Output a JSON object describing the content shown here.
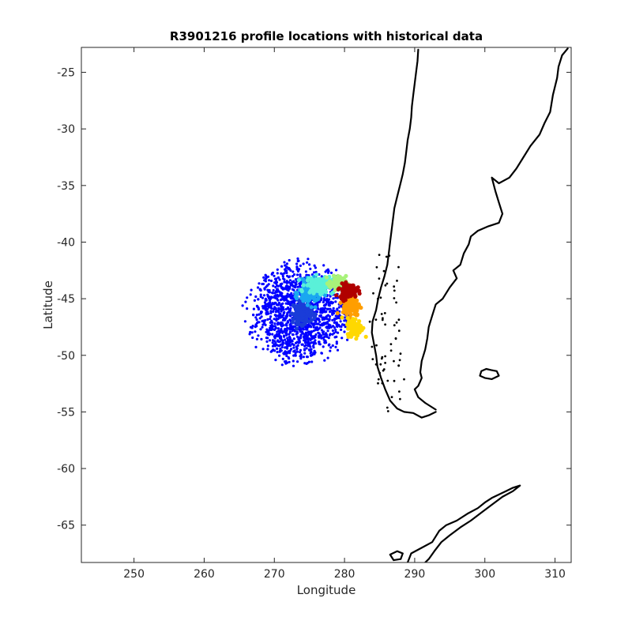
{
  "chart_data": {
    "type": "scatter",
    "title": "R3901216 profile locations with historical data",
    "xlabel": "Longitude",
    "ylabel": "Latitude",
    "xlim": [
      242.5,
      312.3
    ],
    "ylim": [
      -68.3,
      -22.8
    ],
    "xticks": [
      250,
      260,
      270,
      280,
      290,
      300,
      310
    ],
    "yticks": [
      -25,
      -30,
      -35,
      -40,
      -45,
      -50,
      -55,
      -60,
      -65
    ],
    "grid": false,
    "legend": "none",
    "series": [
      {
        "marker_color": "#0000ff",
        "cloud": {
          "center": [
            273.5,
            -46.2
          ],
          "radius_lon": 7.5,
          "radius_lat": 4.6,
          "count": 1400
        },
        "points": []
      },
      {
        "colormap": "jet",
        "clusters": [
          {
            "lon": 274.0,
            "lat": -46.2,
            "count": 160,
            "spread": [
              1.3,
              1.0
            ],
            "color": "#1a3cd8"
          },
          {
            "lon": 275.0,
            "lat": -44.5,
            "count": 140,
            "spread": [
              1.5,
              1.0
            ],
            "color": "#1aa8f0"
          },
          {
            "lon": 276.5,
            "lat": -43.8,
            "count": 150,
            "spread": [
              2.0,
              0.7
            ],
            "color": "#5af0d8"
          },
          {
            "lon": 279.0,
            "lat": -43.6,
            "count": 90,
            "spread": [
              1.2,
              0.6
            ],
            "color": "#a8f27a"
          },
          {
            "lon": 281.0,
            "lat": -45.6,
            "count": 120,
            "spread": [
              1.2,
              0.9
            ],
            "color": "#ff9e00"
          },
          {
            "lon": 281.5,
            "lat": -47.5,
            "count": 110,
            "spread": [
              1.1,
              0.8
            ],
            "color": "#ffd800"
          },
          {
            "lon": 280.5,
            "lat": -44.3,
            "count": 130,
            "spread": [
              1.2,
              0.6
            ],
            "color": "#b00000"
          }
        ]
      }
    ],
    "coastlines": [
      {
        "name": "south-america-west",
        "points": [
          [
            290.5,
            -23
          ],
          [
            290.4,
            -24
          ],
          [
            290.2,
            -25
          ],
          [
            290.0,
            -26
          ],
          [
            289.8,
            -27
          ],
          [
            289.6,
            -28
          ],
          [
            289.5,
            -29
          ],
          [
            289.3,
            -30
          ],
          [
            289.0,
            -31
          ],
          [
            288.8,
            -32
          ],
          [
            288.6,
            -33
          ],
          [
            288.3,
            -34
          ],
          [
            287.9,
            -35
          ],
          [
            287.5,
            -36
          ],
          [
            287.1,
            -37
          ],
          [
            286.9,
            -38
          ],
          [
            286.7,
            -39
          ],
          [
            286.5,
            -40
          ],
          [
            286.3,
            -41
          ],
          [
            286.1,
            -42
          ],
          [
            285.7,
            -43
          ],
          [
            285.2,
            -44
          ],
          [
            284.8,
            -45
          ],
          [
            284.5,
            -46
          ],
          [
            284.0,
            -47
          ],
          [
            283.9,
            -48
          ],
          [
            284.2,
            -49
          ],
          [
            284.5,
            -50
          ],
          [
            284.7,
            -51
          ],
          [
            285.2,
            -52
          ],
          [
            285.8,
            -53
          ],
          [
            286.5,
            -54
          ],
          [
            287.5,
            -54.7
          ],
          [
            288.5,
            -55.0
          ],
          [
            289.8,
            -55.1
          ],
          [
            291.0,
            -55.5
          ],
          [
            292.0,
            -55.3
          ],
          [
            293.0,
            -55.0
          ]
        ]
      },
      {
        "name": "south-america-east",
        "points": [
          [
            311.8,
            -22.9
          ],
          [
            311.0,
            -23.5
          ],
          [
            310.5,
            -24.5
          ],
          [
            310.3,
            -25.5
          ],
          [
            309.7,
            -27
          ],
          [
            309.3,
            -28.5
          ],
          [
            308.5,
            -29.5
          ],
          [
            307.8,
            -30.5
          ],
          [
            306.5,
            -31.5
          ],
          [
            305.5,
            -32.5
          ],
          [
            304.5,
            -33.5
          ],
          [
            303.5,
            -34.3
          ],
          [
            302.0,
            -34.8
          ],
          [
            301.0,
            -34.3
          ],
          [
            301.5,
            -35.5
          ],
          [
            302.0,
            -36.5
          ],
          [
            302.5,
            -37.5
          ],
          [
            302.0,
            -38.3
          ],
          [
            300.5,
            -38.6
          ],
          [
            299.0,
            -39.0
          ],
          [
            298.0,
            -39.5
          ],
          [
            297.7,
            -40.2
          ],
          [
            297.0,
            -41.0
          ],
          [
            296.5,
            -42.0
          ],
          [
            295.5,
            -42.5
          ],
          [
            296.0,
            -43.2
          ],
          [
            295.0,
            -44.0
          ],
          [
            294.0,
            -45.0
          ],
          [
            293.0,
            -45.5
          ],
          [
            292.5,
            -46.5
          ],
          [
            292.0,
            -47.5
          ],
          [
            291.8,
            -48.5
          ],
          [
            291.5,
            -49.5
          ],
          [
            291.0,
            -50.5
          ],
          [
            290.8,
            -51.5
          ],
          [
            291.0,
            -52.0
          ],
          [
            290.5,
            -52.7
          ],
          [
            290.0,
            -53.0
          ],
          [
            290.5,
            -53.7
          ],
          [
            291.5,
            -54.2
          ],
          [
            293.0,
            -54.8
          ]
        ]
      },
      {
        "name": "falklands",
        "points": [
          [
            299.5,
            -51.4
          ],
          [
            300.2,
            -51.2
          ],
          [
            300.9,
            -51.3
          ],
          [
            301.7,
            -51.4
          ],
          [
            302.0,
            -51.8
          ],
          [
            301.0,
            -52.1
          ],
          [
            300.0,
            -52.0
          ],
          [
            299.3,
            -51.8
          ],
          [
            299.5,
            -51.4
          ]
        ]
      },
      {
        "name": "antarctic-peninsula",
        "points": [
          [
            289.0,
            -68.3
          ],
          [
            289.5,
            -67.5
          ],
          [
            291.0,
            -67.0
          ],
          [
            292.5,
            -66.5
          ],
          [
            293.5,
            -65.5
          ],
          [
            294.5,
            -65.0
          ],
          [
            296.0,
            -64.6
          ],
          [
            297.5,
            -64.0
          ],
          [
            299.0,
            -63.5
          ],
          [
            300.0,
            -63.0
          ],
          [
            301.0,
            -62.6
          ],
          [
            302.0,
            -62.3
          ],
          [
            303.0,
            -62.0
          ],
          [
            304.0,
            -61.7
          ],
          [
            305.0,
            -61.5
          ],
          [
            304.0,
            -62.0
          ],
          [
            302.5,
            -62.5
          ],
          [
            301.0,
            -63.2
          ],
          [
            299.5,
            -63.9
          ],
          [
            298.0,
            -64.6
          ],
          [
            296.5,
            -65.2
          ],
          [
            295.0,
            -65.9
          ],
          [
            293.8,
            -66.5
          ],
          [
            292.8,
            -67.3
          ],
          [
            292.0,
            -68.0
          ],
          [
            291.5,
            -68.3
          ]
        ]
      },
      {
        "name": "alexander-island",
        "points": [
          [
            286.5,
            -67.6
          ],
          [
            287.5,
            -67.3
          ],
          [
            288.3,
            -67.5
          ],
          [
            288.0,
            -68.0
          ],
          [
            287.0,
            -68.1
          ],
          [
            286.5,
            -67.6
          ]
        ]
      }
    ]
  }
}
